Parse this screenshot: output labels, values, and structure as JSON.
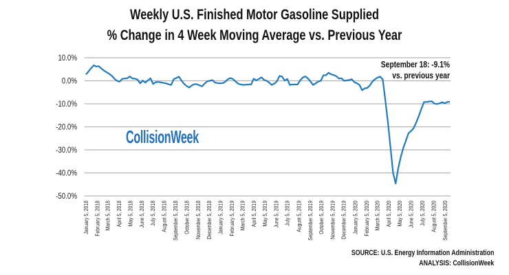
{
  "chart_data": {
    "type": "line",
    "title": [
      "Weekly U.S. Finished Motor Gasoline Supplied",
      "% Change in 4 Week Moving Average vs. Previous Year"
    ],
    "xlabel": "",
    "ylabel": "",
    "ylim": [
      -50,
      10
    ],
    "y_ticks": [
      "10.0%",
      "0.0%",
      "-10.0%",
      "-20.0%",
      "-30.0%",
      "-40.0%",
      "-50.0%"
    ],
    "y_tick_values": [
      10,
      0,
      -10,
      -20,
      -30,
      -40,
      -50
    ],
    "grid": true,
    "line_color": "#1f7bc1",
    "x_frequency": "weekly",
    "x_start": "January 5, 2018",
    "x_end": "September 18, 2020",
    "x_ticks": [
      "January 5, 2018",
      "February 5, 2018",
      "March 5, 2018",
      "April 5, 2018",
      "May 5, 2018",
      "June 5, 2018",
      "July 5, 2018",
      "August 5, 2018",
      "September 5, 2018",
      "October 5, 2018",
      "November 5, 2018",
      "December 5, 2018",
      "January 5, 2019",
      "February 5, 2019",
      "March 5, 2019",
      "April 5, 2019",
      "May 5, 2019",
      "June 5, 2019",
      "July 5, 2019",
      "August 5, 2019",
      "September 5, 2019",
      "October 5, 2019",
      "November 5, 2019",
      "December 5, 2019",
      "January 5, 2020",
      "February 5, 2020",
      "March 5, 2020",
      "April 5, 2020",
      "May 5, 2020",
      "June 5, 2020",
      "July 5, 2020",
      "August 5, 2020",
      "September 5, 2020"
    ],
    "values": [
      2.7,
      4.1,
      5.5,
      6.7,
      6.2,
      6.3,
      5.3,
      4.4,
      3.7,
      3.0,
      2.2,
      0.9,
      0.0,
      -0.4,
      0.8,
      1.0,
      1.1,
      1.9,
      1.0,
      0.9,
      0.5,
      -1.1,
      0.1,
      -0.8,
      0.2,
      1.1,
      -1.4,
      -0.6,
      -0.5,
      -0.7,
      -0.9,
      -1.1,
      -1.5,
      -1.8,
      0.7,
      1.2,
      1.8,
      0.1,
      -1.3,
      -2.3,
      -2.9,
      -2.0,
      -1.5,
      -1.5,
      -2.0,
      -2.4,
      -1.2,
      -0.2,
      0.0,
      0.3,
      -0.8,
      -1.0,
      -1.1,
      -1.0,
      -0.4,
      0.7,
      1.2,
      0.7,
      -0.3,
      -1.3,
      -1.6,
      -1.8,
      -1.7,
      -1.6,
      -1.6,
      0.9,
      0.2,
      0.8,
      1.5,
      0.4,
      0.0,
      -0.8,
      -1.8,
      -1.2,
      -0.2,
      2.1,
      1.8,
      0.1,
      0.8,
      -1.8,
      -1.6,
      -1.6,
      -1.6,
      0.2,
      1.4,
      1.9,
      1.0,
      -0.3,
      -1.8,
      -1.1,
      -0.3,
      0.0,
      2.4,
      2.4,
      3.5,
      2.8,
      2.5,
      2.0,
      1.0,
      1.1,
      0.0,
      0.2,
      0.3,
      0.7,
      -0.6,
      -1.1,
      -1.8,
      -4.1,
      -3.3,
      -3.1,
      -2.0,
      -0.3,
      0.7,
      1.4,
      1.8,
      0.6,
      -8.5,
      -18,
      -29,
      -40,
      -44.6,
      -38,
      -33,
      -29,
      -25.9,
      -22.7,
      -21.8,
      -20.5,
      -18,
      -15.2,
      -12.1,
      -9.2,
      -9.2,
      -9.0,
      -8.9,
      -9.9,
      -10.1,
      -9.8,
      -9.3,
      -9.8,
      -9.2,
      -9.1
    ],
    "annotation": [
      "September 18: -9.1%",
      "vs. previous year"
    ]
  },
  "logo_text": "CollisionWeek",
  "source": [
    "SOURCE: U.S. Energy Information Administration",
    "ANALYSIS: CollisionWeek"
  ]
}
